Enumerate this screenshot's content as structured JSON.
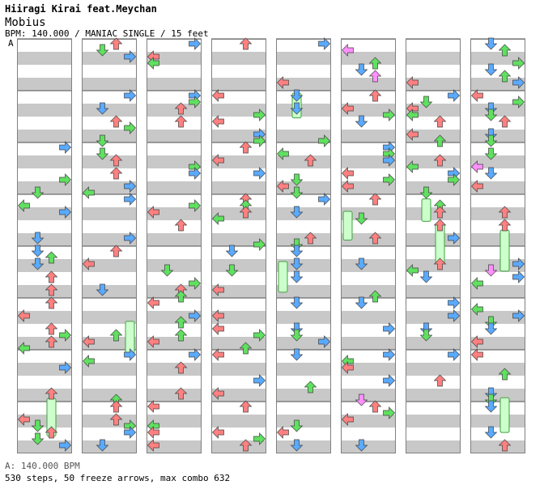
{
  "header": {
    "artist": "Hiiragi Kirai feat.Meychan",
    "title": "Mobius",
    "info": "BPM: 140.000 / MANIAC SINGLE / 15 feet",
    "section_marker": "A"
  },
  "footer": {
    "bpm_line": "A: 140.000 BPM",
    "stats": "530 steps, 50 freeze arrows, max combo 632"
  },
  "colors": {
    "band_gray": "#c8c8c8",
    "measure_line": "#505050",
    "left_arrow": "#ff8080",
    "down_arrow": "#5aaaff",
    "up_arrow": "#ff8080",
    "right_arrow": "#5aaaff",
    "green_note": "#60e060",
    "pink_note": "#ff90ff",
    "freeze_body": "#ccffcc",
    "freeze_border": "#40a040"
  },
  "chart_meta": {
    "columns": 8,
    "measures_per_column": 8,
    "lanes": [
      "left",
      "down",
      "up",
      "right"
    ],
    "seed": 7
  }
}
